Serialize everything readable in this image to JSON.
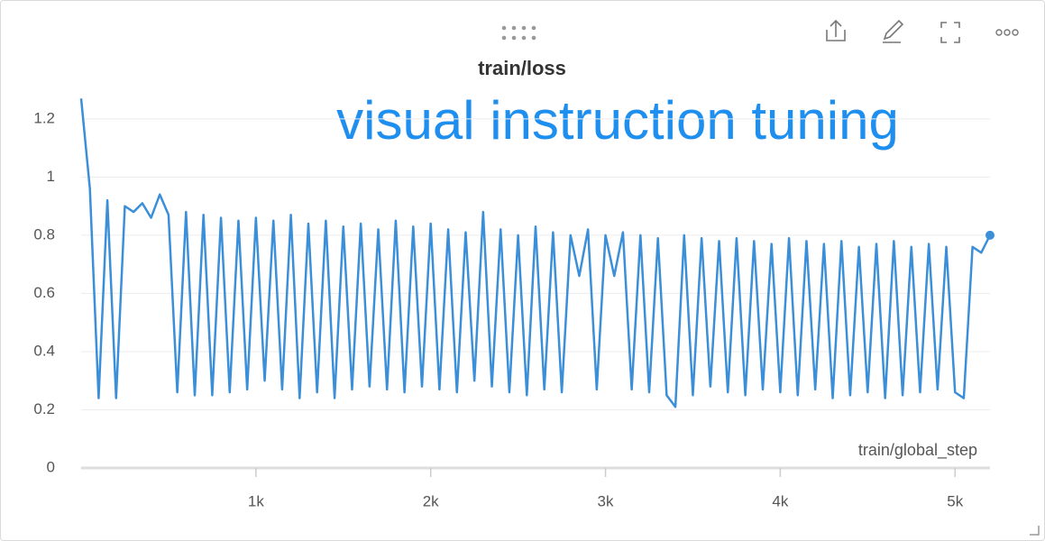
{
  "chart_data": {
    "type": "line",
    "title": "train/loss",
    "annotation": "visual instruction tuning",
    "x_label": "train/global_step",
    "x": [
      0,
      50,
      100,
      150,
      200,
      250,
      300,
      350,
      400,
      450,
      500,
      550,
      600,
      650,
      700,
      750,
      800,
      850,
      900,
      950,
      1000,
      1050,
      1100,
      1150,
      1200,
      1250,
      1300,
      1350,
      1400,
      1450,
      1500,
      1550,
      1600,
      1650,
      1700,
      1750,
      1800,
      1850,
      1900,
      1950,
      2000,
      2050,
      2100,
      2150,
      2200,
      2250,
      2300,
      2350,
      2400,
      2450,
      2500,
      2550,
      2600,
      2650,
      2700,
      2750,
      2800,
      2850,
      2900,
      2950,
      3000,
      3050,
      3100,
      3150,
      3200,
      3250,
      3300,
      3350,
      3400,
      3450,
      3500,
      3550,
      3600,
      3650,
      3700,
      3750,
      3800,
      3850,
      3900,
      3950,
      4000,
      4050,
      4100,
      4150,
      4200,
      4250,
      4300,
      4350,
      4400,
      4450,
      4500,
      4550,
      4600,
      4650,
      4700,
      4750,
      4800,
      4850,
      4900,
      4950,
      5000,
      5050,
      5100,
      5150,
      5200
    ],
    "series": [
      {
        "name": "train/loss",
        "color": "#3b8fd9",
        "values": [
          1.27,
          0.96,
          0.24,
          0.92,
          0.24,
          0.9,
          0.88,
          0.91,
          0.86,
          0.94,
          0.87,
          0.26,
          0.88,
          0.25,
          0.87,
          0.25,
          0.86,
          0.26,
          0.85,
          0.27,
          0.86,
          0.3,
          0.85,
          0.27,
          0.87,
          0.24,
          0.84,
          0.26,
          0.85,
          0.24,
          0.83,
          0.27,
          0.84,
          0.28,
          0.82,
          0.27,
          0.85,
          0.26,
          0.83,
          0.28,
          0.84,
          0.27,
          0.82,
          0.26,
          0.81,
          0.3,
          0.88,
          0.28,
          0.82,
          0.26,
          0.8,
          0.25,
          0.83,
          0.27,
          0.81,
          0.26,
          0.8,
          0.66,
          0.82,
          0.27,
          0.8,
          0.66,
          0.81,
          0.27,
          0.8,
          0.26,
          0.79,
          0.25,
          0.21,
          0.8,
          0.25,
          0.79,
          0.28,
          0.78,
          0.26,
          0.79,
          0.25,
          0.78,
          0.27,
          0.77,
          0.26,
          0.79,
          0.25,
          0.78,
          0.27,
          0.77,
          0.24,
          0.78,
          0.25,
          0.76,
          0.26,
          0.77,
          0.24,
          0.78,
          0.25,
          0.76,
          0.26,
          0.77,
          0.27,
          0.76,
          0.26,
          0.24,
          0.76,
          0.74,
          0.8
        ]
      }
    ],
    "xlim": [
      0,
      5200
    ],
    "ylim": [
      0,
      1.28
    ],
    "xticks": [
      {
        "value": 1000,
        "label": "1k"
      },
      {
        "value": 2000,
        "label": "2k"
      },
      {
        "value": 3000,
        "label": "3k"
      },
      {
        "value": 4000,
        "label": "4k"
      },
      {
        "value": 5000,
        "label": "5k"
      }
    ],
    "yticks": [
      0,
      0.2,
      0.4,
      0.6,
      0.8,
      1,
      1.2
    ],
    "grid": true
  }
}
